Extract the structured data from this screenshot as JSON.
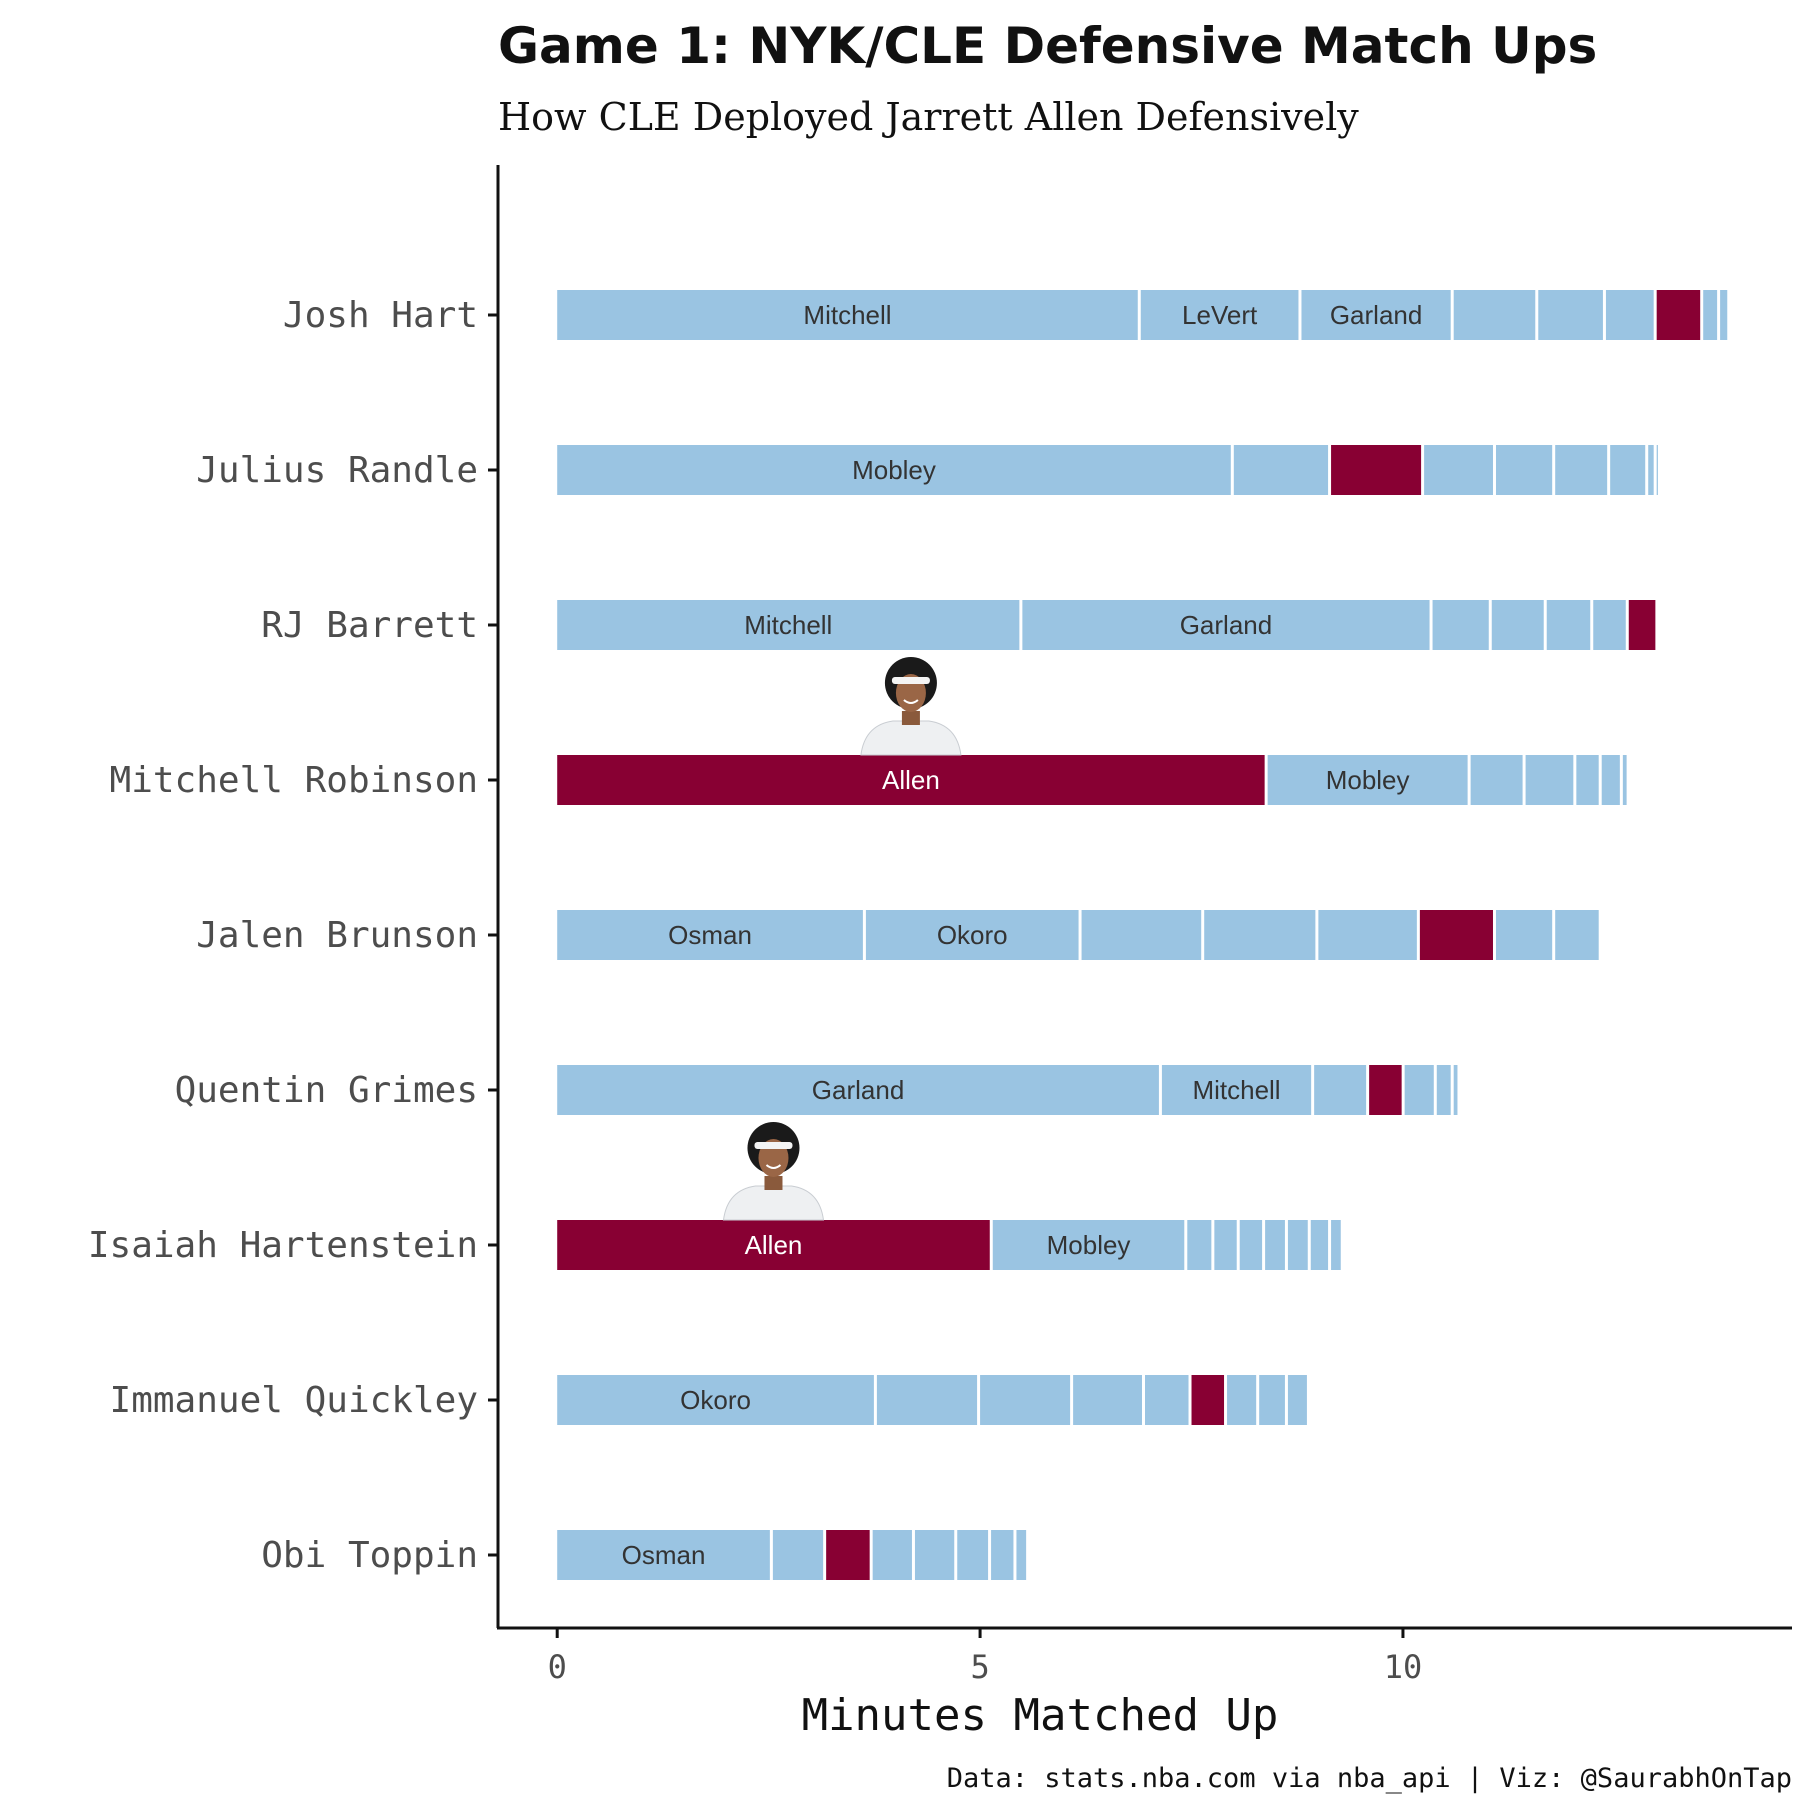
{
  "chart_data": {
    "type": "bar",
    "orientation": "horizontal",
    "stacked": true,
    "title": "Game 1: NYK/CLE Defensive Match Ups",
    "subtitle": "How CLE Deployed Jarrett Allen Defensively",
    "xlabel": "Minutes Matched Up",
    "caption": "Data: stats.nba.com via nba_api | Viz: @SaurabhOnTap",
    "xlim": [
      -0.7,
      14.6
    ],
    "xticks": [
      0,
      5,
      10
    ],
    "grid": false,
    "colors": {
      "other": "#9ac4e2",
      "allen": "#880033",
      "label_other": "#333333",
      "label_allen": "#ffffff"
    },
    "highlight_defender": "Allen",
    "headshot_rows": [
      "Mitchell Robinson",
      "Isaiah Hartenstein"
    ],
    "categories": [
      "Josh Hart",
      "Julius Randle",
      "RJ Barrett",
      "Mitchell Robinson",
      "Jalen Brunson",
      "Quentin Grimes",
      "Isaiah Hartenstein",
      "Immanuel Quickley",
      "Obi Toppin"
    ],
    "rows": [
      {
        "player": "Josh Hart",
        "segments": [
          {
            "label": "Mitchell",
            "minutes": 6.9
          },
          {
            "label": "LeVert",
            "minutes": 1.9
          },
          {
            "label": "Garland",
            "minutes": 1.8
          },
          {
            "label": "",
            "minutes": 1.0
          },
          {
            "label": "",
            "minutes": 0.8
          },
          {
            "label": "",
            "minutes": 0.6
          },
          {
            "label": "Allen",
            "minutes": 0.55,
            "show_label": false
          },
          {
            "label": "",
            "minutes": 0.2
          },
          {
            "label": "",
            "minutes": 0.12
          }
        ]
      },
      {
        "player": "Julius Randle",
        "segments": [
          {
            "label": "Mobley",
            "minutes": 8.0
          },
          {
            "label": "",
            "minutes": 1.15
          },
          {
            "label": "Allen",
            "minutes": 1.1,
            "show_label": false
          },
          {
            "label": "",
            "minutes": 0.85
          },
          {
            "label": "",
            "minutes": 0.7
          },
          {
            "label": "",
            "minutes": 0.65
          },
          {
            "label": "",
            "minutes": 0.45
          },
          {
            "label": "",
            "minutes": 0.1
          },
          {
            "label": "",
            "minutes": 0.05
          }
        ]
      },
      {
        "player": "RJ Barrett",
        "segments": [
          {
            "label": "Mitchell",
            "minutes": 5.5
          },
          {
            "label": "Garland",
            "minutes": 4.85
          },
          {
            "label": "",
            "minutes": 0.7
          },
          {
            "label": "",
            "minutes": 0.65
          },
          {
            "label": "",
            "minutes": 0.55
          },
          {
            "label": "",
            "minutes": 0.42
          },
          {
            "label": "Allen",
            "minutes": 0.35,
            "show_label": false
          }
        ]
      },
      {
        "player": "Mitchell Robinson",
        "segments": [
          {
            "label": "Allen",
            "minutes": 8.4
          },
          {
            "label": "Mobley",
            "minutes": 2.4
          },
          {
            "label": "",
            "minutes": 0.65
          },
          {
            "label": "",
            "minutes": 0.6
          },
          {
            "label": "",
            "minutes": 0.3
          },
          {
            "label": "",
            "minutes": 0.25
          },
          {
            "label": "",
            "minutes": 0.08
          }
        ]
      },
      {
        "player": "Jalen Brunson",
        "segments": [
          {
            "label": "Osman",
            "minutes": 3.65
          },
          {
            "label": "Okoro",
            "minutes": 2.55
          },
          {
            "label": "",
            "minutes": 1.45
          },
          {
            "label": "",
            "minutes": 1.35
          },
          {
            "label": "",
            "minutes": 1.2
          },
          {
            "label": "Allen",
            "minutes": 0.9,
            "show_label": false
          },
          {
            "label": "",
            "minutes": 0.7
          },
          {
            "label": "",
            "minutes": 0.55
          }
        ]
      },
      {
        "player": "Quentin Grimes",
        "segments": [
          {
            "label": "Garland",
            "minutes": 7.15
          },
          {
            "label": "Mitchell",
            "minutes": 1.8
          },
          {
            "label": "",
            "minutes": 0.65
          },
          {
            "label": "Allen",
            "minutes": 0.42,
            "show_label": false
          },
          {
            "label": "",
            "minutes": 0.38
          },
          {
            "label": "",
            "minutes": 0.2
          },
          {
            "label": "",
            "minutes": 0.08
          }
        ]
      },
      {
        "player": "Isaiah Hartenstein",
        "segments": [
          {
            "label": "Allen",
            "minutes": 5.15
          },
          {
            "label": "Mobley",
            "minutes": 2.3
          },
          {
            "label": "",
            "minutes": 0.32
          },
          {
            "label": "",
            "minutes": 0.3
          },
          {
            "label": "",
            "minutes": 0.3
          },
          {
            "label": "",
            "minutes": 0.27
          },
          {
            "label": "",
            "minutes": 0.27
          },
          {
            "label": "",
            "minutes": 0.24
          },
          {
            "label": "",
            "minutes": 0.15
          }
        ]
      },
      {
        "player": "Immanuel Quickley",
        "segments": [
          {
            "label": "Okoro",
            "minutes": 3.78
          },
          {
            "label": "",
            "minutes": 1.22
          },
          {
            "label": "",
            "minutes": 1.1
          },
          {
            "label": "",
            "minutes": 0.85
          },
          {
            "label": "",
            "minutes": 0.55
          },
          {
            "label": "Allen",
            "minutes": 0.42,
            "show_label": false
          },
          {
            "label": "",
            "minutes": 0.38
          },
          {
            "label": "",
            "minutes": 0.34
          },
          {
            "label": "",
            "minutes": 0.26
          }
        ]
      },
      {
        "player": "Obi Toppin",
        "segments": [
          {
            "label": "Osman",
            "minutes": 2.55
          },
          {
            "label": "",
            "minutes": 0.63
          },
          {
            "label": "Allen",
            "minutes": 0.55,
            "show_label": false
          },
          {
            "label": "",
            "minutes": 0.5
          },
          {
            "label": "",
            "minutes": 0.5
          },
          {
            "label": "",
            "minutes": 0.4
          },
          {
            "label": "",
            "minutes": 0.3
          },
          {
            "label": "",
            "minutes": 0.15
          }
        ]
      }
    ]
  }
}
